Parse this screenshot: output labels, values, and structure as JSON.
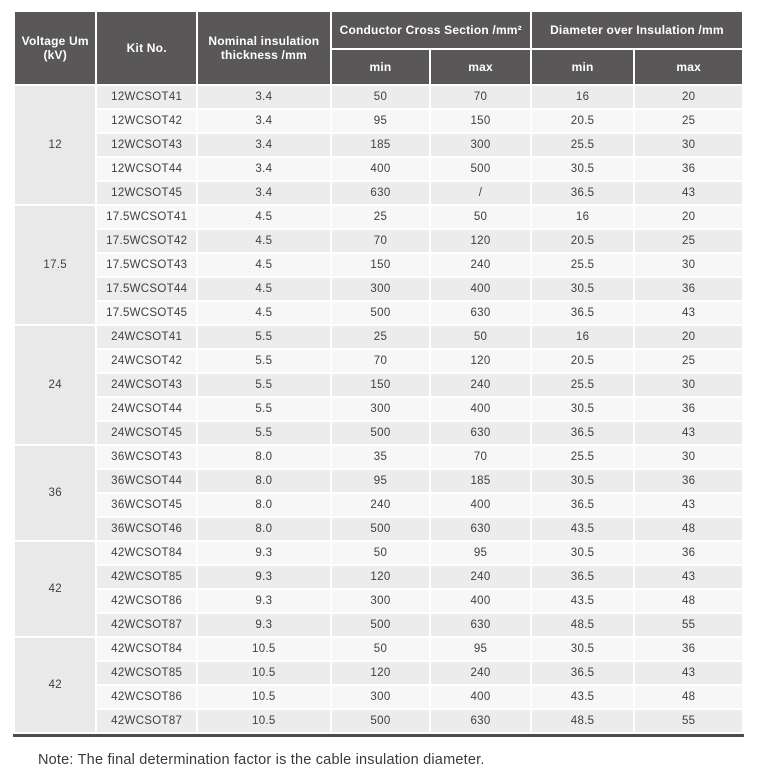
{
  "table": {
    "header": {
      "voltage": "Voltage Um (kV)",
      "kit": "Kit No.",
      "nominal": "Nominal insulation thickness /mm",
      "ccs": "Conductor Cross Section /mm²",
      "dia": "Diameter over Insulation /mm",
      "min": "min",
      "max": "max"
    },
    "groups": [
      {
        "voltage": "12",
        "rows": [
          [
            "12WCSOT41",
            "3.4",
            "50",
            "70",
            "16",
            "20"
          ],
          [
            "12WCSOT42",
            "3.4",
            "95",
            "150",
            "20.5",
            "25"
          ],
          [
            "12WCSOT43",
            "3.4",
            "185",
            "300",
            "25.5",
            "30"
          ],
          [
            "12WCSOT44",
            "3.4",
            "400",
            "500",
            "30.5",
            "36"
          ],
          [
            "12WCSOT45",
            "3.4",
            "630",
            "/",
            "36.5",
            "43"
          ]
        ]
      },
      {
        "voltage": "17.5",
        "rows": [
          [
            "17.5WCSOT41",
            "4.5",
            "25",
            "50",
            "16",
            "20"
          ],
          [
            "17.5WCSOT42",
            "4.5",
            "70",
            "120",
            "20.5",
            "25"
          ],
          [
            "17.5WCSOT43",
            "4.5",
            "150",
            "240",
            "25.5",
            "30"
          ],
          [
            "17.5WCSOT44",
            "4.5",
            "300",
            "400",
            "30.5",
            "36"
          ],
          [
            "17.5WCSOT45",
            "4.5",
            "500",
            "630",
            "36.5",
            "43"
          ]
        ]
      },
      {
        "voltage": "24",
        "rows": [
          [
            "24WCSOT41",
            "5.5",
            "25",
            "50",
            "16",
            "20"
          ],
          [
            "24WCSOT42",
            "5.5",
            "70",
            "120",
            "20.5",
            "25"
          ],
          [
            "24WCSOT43",
            "5.5",
            "150",
            "240",
            "25.5",
            "30"
          ],
          [
            "24WCSOT44",
            "5.5",
            "300",
            "400",
            "30.5",
            "36"
          ],
          [
            "24WCSOT45",
            "5.5",
            "500",
            "630",
            "36.5",
            "43"
          ]
        ]
      },
      {
        "voltage": "36",
        "rows": [
          [
            "36WCSOT43",
            "8.0",
            "35",
            "70",
            "25.5",
            "30"
          ],
          [
            "36WCSOT44",
            "8.0",
            "95",
            "185",
            "30.5",
            "36"
          ],
          [
            "36WCSOT45",
            "8.0",
            "240",
            "400",
            "36.5",
            "43"
          ],
          [
            "36WCSOT46",
            "8.0",
            "500",
            "630",
            "43.5",
            "48"
          ]
        ]
      },
      {
        "voltage": "42",
        "rows": [
          [
            "42WCSOT84",
            "9.3",
            "50",
            "95",
            "30.5",
            "36"
          ],
          [
            "42WCSOT85",
            "9.3",
            "120",
            "240",
            "36.5",
            "43"
          ],
          [
            "42WCSOT86",
            "9.3",
            "300",
            "400",
            "43.5",
            "48"
          ],
          [
            "42WCSOT87",
            "9.3",
            "500",
            "630",
            "48.5",
            "55"
          ]
        ]
      },
      {
        "voltage": "42",
        "rows": [
          [
            "42WCSOT84",
            "10.5",
            "50",
            "95",
            "30.5",
            "36"
          ],
          [
            "42WCSOT85",
            "10.5",
            "120",
            "240",
            "36.5",
            "43"
          ],
          [
            "42WCSOT86",
            "10.5",
            "300",
            "400",
            "43.5",
            "48"
          ],
          [
            "42WCSOT87",
            "10.5",
            "500",
            "630",
            "48.5",
            "55"
          ]
        ]
      }
    ]
  },
  "note": "Note: The final determination factor is the cable insulation diameter.",
  "colors": {
    "header_bg": "#595757",
    "row_odd": "#ececec",
    "row_even": "#f7f7f7",
    "voltage_col_bg": "#e9e9e9",
    "body_text": "#3f3f3f",
    "bottom_rule": "#4d4b4b"
  }
}
